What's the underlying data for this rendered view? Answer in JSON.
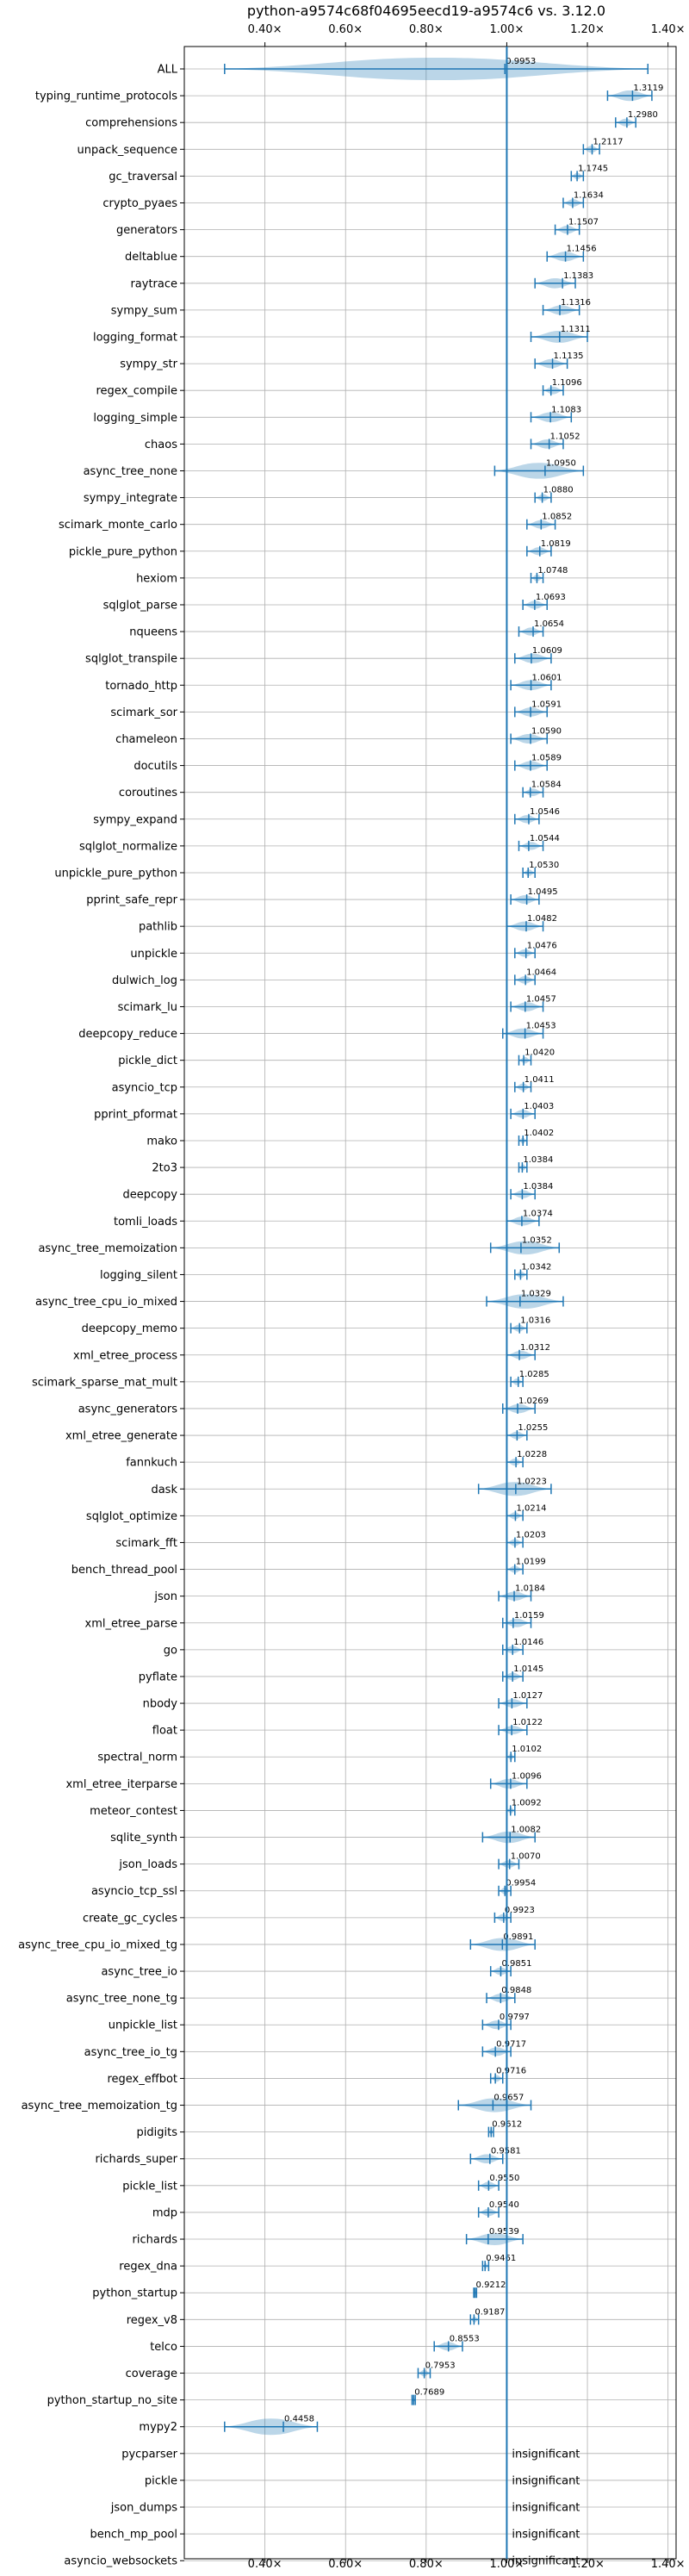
{
  "chart_data": {
    "type": "violin",
    "title": "python-a9574c68f04695eecd19-a9574c6 vs. 3.12.0",
    "x_ticks": [
      "0.40×",
      "0.60×",
      "0.80×",
      "1.00×",
      "1.20×",
      "1.40×"
    ],
    "x_tick_values": [
      0.4,
      0.6,
      0.8,
      1.0,
      1.2,
      1.4
    ],
    "xlim": [
      0.2,
      1.42
    ],
    "reference_line": 1.0,
    "grid": true,
    "color": "#1f77b4",
    "rows": [
      {
        "name": "ALL",
        "value": 0.9953,
        "label": "0.9953",
        "min": 0.3,
        "max": 1.35
      },
      {
        "name": "typing_runtime_protocols",
        "value": 1.3119,
        "label": "1.3119",
        "min": 1.25,
        "max": 1.36
      },
      {
        "name": "comprehensions",
        "value": 1.298,
        "label": "1.2980",
        "min": 1.27,
        "max": 1.32
      },
      {
        "name": "unpack_sequence",
        "value": 1.2117,
        "label": "1.2117",
        "min": 1.19,
        "max": 1.23
      },
      {
        "name": "gc_traversal",
        "value": 1.1745,
        "label": "1.1745",
        "min": 1.16,
        "max": 1.19
      },
      {
        "name": "crypto_pyaes",
        "value": 1.1634,
        "label": "1.1634",
        "min": 1.14,
        "max": 1.19
      },
      {
        "name": "generators",
        "value": 1.1507,
        "label": "1.1507",
        "min": 1.12,
        "max": 1.18
      },
      {
        "name": "deltablue",
        "value": 1.1456,
        "label": "1.1456",
        "min": 1.1,
        "max": 1.19
      },
      {
        "name": "raytrace",
        "value": 1.1383,
        "label": "1.1383",
        "min": 1.07,
        "max": 1.17
      },
      {
        "name": "sympy_sum",
        "value": 1.1316,
        "label": "1.1316",
        "min": 1.09,
        "max": 1.18
      },
      {
        "name": "logging_format",
        "value": 1.1311,
        "label": "1.1311",
        "min": 1.06,
        "max": 1.2
      },
      {
        "name": "sympy_str",
        "value": 1.1135,
        "label": "1.1135",
        "min": 1.07,
        "max": 1.15
      },
      {
        "name": "regex_compile",
        "value": 1.1096,
        "label": "1.1096",
        "min": 1.09,
        "max": 1.14
      },
      {
        "name": "logging_simple",
        "value": 1.1083,
        "label": "1.1083",
        "min": 1.06,
        "max": 1.16
      },
      {
        "name": "chaos",
        "value": 1.1052,
        "label": "1.1052",
        "min": 1.06,
        "max": 1.14
      },
      {
        "name": "async_tree_none",
        "value": 1.095,
        "label": "1.0950",
        "min": 0.97,
        "max": 1.19
      },
      {
        "name": "sympy_integrate",
        "value": 1.088,
        "label": "1.0880",
        "min": 1.07,
        "max": 1.11
      },
      {
        "name": "scimark_monte_carlo",
        "value": 1.0852,
        "label": "1.0852",
        "min": 1.05,
        "max": 1.12
      },
      {
        "name": "pickle_pure_python",
        "value": 1.0819,
        "label": "1.0819",
        "min": 1.05,
        "max": 1.11
      },
      {
        "name": "hexiom",
        "value": 1.0748,
        "label": "1.0748",
        "min": 1.06,
        "max": 1.09
      },
      {
        "name": "sqlglot_parse",
        "value": 1.0693,
        "label": "1.0693",
        "min": 1.04,
        "max": 1.1
      },
      {
        "name": "nqueens",
        "value": 1.0654,
        "label": "1.0654",
        "min": 1.03,
        "max": 1.09
      },
      {
        "name": "sqlglot_transpile",
        "value": 1.0609,
        "label": "1.0609",
        "min": 1.02,
        "max": 1.11
      },
      {
        "name": "tornado_http",
        "value": 1.0601,
        "label": "1.0601",
        "min": 1.01,
        "max": 1.11
      },
      {
        "name": "scimark_sor",
        "value": 1.0591,
        "label": "1.0591",
        "min": 1.02,
        "max": 1.1
      },
      {
        "name": "chameleon",
        "value": 1.059,
        "label": "1.0590",
        "min": 1.01,
        "max": 1.1
      },
      {
        "name": "docutils",
        "value": 1.0589,
        "label": "1.0589",
        "min": 1.02,
        "max": 1.1
      },
      {
        "name": "coroutines",
        "value": 1.0584,
        "label": "1.0584",
        "min": 1.04,
        "max": 1.09
      },
      {
        "name": "sympy_expand",
        "value": 1.0546,
        "label": "1.0546",
        "min": 1.02,
        "max": 1.08
      },
      {
        "name": "sqlglot_normalize",
        "value": 1.0544,
        "label": "1.0544",
        "min": 1.03,
        "max": 1.09
      },
      {
        "name": "unpickle_pure_python",
        "value": 1.053,
        "label": "1.0530",
        "min": 1.04,
        "max": 1.07
      },
      {
        "name": "pprint_safe_repr",
        "value": 1.0495,
        "label": "1.0495",
        "min": 1.01,
        "max": 1.08
      },
      {
        "name": "pathlib",
        "value": 1.0482,
        "label": "1.0482",
        "min": 1.0,
        "max": 1.09
      },
      {
        "name": "unpickle",
        "value": 1.0476,
        "label": "1.0476",
        "min": 1.02,
        "max": 1.07
      },
      {
        "name": "dulwich_log",
        "value": 1.0464,
        "label": "1.0464",
        "min": 1.02,
        "max": 1.07
      },
      {
        "name": "scimark_lu",
        "value": 1.0457,
        "label": "1.0457",
        "min": 1.01,
        "max": 1.09
      },
      {
        "name": "deepcopy_reduce",
        "value": 1.0453,
        "label": "1.0453",
        "min": 0.99,
        "max": 1.09
      },
      {
        "name": "pickle_dict",
        "value": 1.042,
        "label": "1.0420",
        "min": 1.03,
        "max": 1.06
      },
      {
        "name": "asyncio_tcp",
        "value": 1.0411,
        "label": "1.0411",
        "min": 1.02,
        "max": 1.06
      },
      {
        "name": "pprint_pformat",
        "value": 1.0403,
        "label": "1.0403",
        "min": 1.01,
        "max": 1.07
      },
      {
        "name": "mako",
        "value": 1.0402,
        "label": "1.0402",
        "min": 1.03,
        "max": 1.05
      },
      {
        "name": "2to3",
        "value": 1.0384,
        "label": "1.0384",
        "min": 1.03,
        "max": 1.05
      },
      {
        "name": "deepcopy",
        "value": 1.0384,
        "label": "1.0384",
        "min": 1.01,
        "max": 1.07
      },
      {
        "name": "tomli_loads",
        "value": 1.0374,
        "label": "1.0374",
        "min": 1.0,
        "max": 1.08
      },
      {
        "name": "async_tree_memoization",
        "value": 1.0352,
        "label": "1.0352",
        "min": 0.96,
        "max": 1.13
      },
      {
        "name": "logging_silent",
        "value": 1.0342,
        "label": "1.0342",
        "min": 1.02,
        "max": 1.05
      },
      {
        "name": "async_tree_cpu_io_mixed",
        "value": 1.0329,
        "label": "1.0329",
        "min": 0.95,
        "max": 1.14
      },
      {
        "name": "deepcopy_memo",
        "value": 1.0316,
        "label": "1.0316",
        "min": 1.01,
        "max": 1.05
      },
      {
        "name": "xml_etree_process",
        "value": 1.0312,
        "label": "1.0312",
        "min": 1.0,
        "max": 1.07
      },
      {
        "name": "scimark_sparse_mat_mult",
        "value": 1.0285,
        "label": "1.0285",
        "min": 1.01,
        "max": 1.04
      },
      {
        "name": "async_generators",
        "value": 1.0269,
        "label": "1.0269",
        "min": 0.99,
        "max": 1.07
      },
      {
        "name": "xml_etree_generate",
        "value": 1.0255,
        "label": "1.0255",
        "min": 1.0,
        "max": 1.05
      },
      {
        "name": "fannkuch",
        "value": 1.0228,
        "label": "1.0228",
        "min": 1.0,
        "max": 1.04
      },
      {
        "name": "dask",
        "value": 1.0223,
        "label": "1.0223",
        "min": 0.93,
        "max": 1.11
      },
      {
        "name": "sqlglot_optimize",
        "value": 1.0214,
        "label": "1.0214",
        "min": 1.0,
        "max": 1.04
      },
      {
        "name": "scimark_fft",
        "value": 1.0203,
        "label": "1.0203",
        "min": 1.0,
        "max": 1.04
      },
      {
        "name": "bench_thread_pool",
        "value": 1.0199,
        "label": "1.0199",
        "min": 1.0,
        "max": 1.04
      },
      {
        "name": "json",
        "value": 1.0184,
        "label": "1.0184",
        "min": 0.98,
        "max": 1.06
      },
      {
        "name": "xml_etree_parse",
        "value": 1.0159,
        "label": "1.0159",
        "min": 0.99,
        "max": 1.06
      },
      {
        "name": "go",
        "value": 1.0146,
        "label": "1.0146",
        "min": 0.99,
        "max": 1.04
      },
      {
        "name": "pyflate",
        "value": 1.0145,
        "label": "1.0145",
        "min": 0.99,
        "max": 1.04
      },
      {
        "name": "nbody",
        "value": 1.0127,
        "label": "1.0127",
        "min": 0.98,
        "max": 1.05
      },
      {
        "name": "float",
        "value": 1.0122,
        "label": "1.0122",
        "min": 0.98,
        "max": 1.05
      },
      {
        "name": "spectral_norm",
        "value": 1.0102,
        "label": "1.0102",
        "min": 1.0,
        "max": 1.02
      },
      {
        "name": "xml_etree_iterparse",
        "value": 1.0096,
        "label": "1.0096",
        "min": 0.96,
        "max": 1.05
      },
      {
        "name": "meteor_contest",
        "value": 1.0092,
        "label": "1.0092",
        "min": 1.0,
        "max": 1.02
      },
      {
        "name": "sqlite_synth",
        "value": 1.0082,
        "label": "1.0082",
        "min": 0.94,
        "max": 1.07
      },
      {
        "name": "json_loads",
        "value": 1.007,
        "label": "1.0070",
        "min": 0.98,
        "max": 1.03
      },
      {
        "name": "asyncio_tcp_ssl",
        "value": 0.9954,
        "label": "0.9954",
        "min": 0.98,
        "max": 1.01
      },
      {
        "name": "create_gc_cycles",
        "value": 0.9923,
        "label": "0.9923",
        "min": 0.97,
        "max": 1.01
      },
      {
        "name": "async_tree_cpu_io_mixed_tg",
        "value": 0.9891,
        "label": "0.9891",
        "min": 0.91,
        "max": 1.07
      },
      {
        "name": "async_tree_io",
        "value": 0.9851,
        "label": "0.9851",
        "min": 0.96,
        "max": 1.01
      },
      {
        "name": "async_tree_none_tg",
        "value": 0.9848,
        "label": "0.9848",
        "min": 0.95,
        "max": 1.02
      },
      {
        "name": "unpickle_list",
        "value": 0.9797,
        "label": "0.9797",
        "min": 0.94,
        "max": 1.01
      },
      {
        "name": "async_tree_io_tg",
        "value": 0.9717,
        "label": "0.9717",
        "min": 0.94,
        "max": 1.01
      },
      {
        "name": "regex_effbot",
        "value": 0.9716,
        "label": "0.9716",
        "min": 0.96,
        "max": 0.99
      },
      {
        "name": "async_tree_memoization_tg",
        "value": 0.9657,
        "label": "0.9657",
        "min": 0.88,
        "max": 1.06
      },
      {
        "name": "pidigits",
        "value": 0.9612,
        "label": "0.9612",
        "min": 0.955,
        "max": 0.967
      },
      {
        "name": "richards_super",
        "value": 0.9581,
        "label": "0.9581",
        "min": 0.91,
        "max": 0.99
      },
      {
        "name": "pickle_list",
        "value": 0.955,
        "label": "0.9550",
        "min": 0.93,
        "max": 0.98
      },
      {
        "name": "mdp",
        "value": 0.954,
        "label": "0.9540",
        "min": 0.93,
        "max": 0.98
      },
      {
        "name": "richards",
        "value": 0.9539,
        "label": "0.9539",
        "min": 0.9,
        "max": 1.04
      },
      {
        "name": "regex_dna",
        "value": 0.9461,
        "label": "0.9461",
        "min": 0.94,
        "max": 0.955
      },
      {
        "name": "python_startup",
        "value": 0.9212,
        "label": "0.9212",
        "min": 0.918,
        "max": 0.925
      },
      {
        "name": "regex_v8",
        "value": 0.9187,
        "label": "0.9187",
        "min": 0.91,
        "max": 0.93
      },
      {
        "name": "telco",
        "value": 0.8553,
        "label": "0.8553",
        "min": 0.82,
        "max": 0.89
      },
      {
        "name": "coverage",
        "value": 0.7953,
        "label": "0.7953",
        "min": 0.78,
        "max": 0.81
      },
      {
        "name": "python_startup_no_site",
        "value": 0.7689,
        "label": "0.7689",
        "min": 0.765,
        "max": 0.773
      },
      {
        "name": "mypy2",
        "value": 0.4458,
        "label": "0.4458",
        "min": 0.3,
        "max": 0.53
      },
      {
        "name": "pycparser",
        "value": null,
        "label": "insignificant"
      },
      {
        "name": "pickle",
        "value": null,
        "label": "insignificant"
      },
      {
        "name": "json_dumps",
        "value": null,
        "label": "insignificant"
      },
      {
        "name": "bench_mp_pool",
        "value": null,
        "label": "insignificant"
      },
      {
        "name": "asyncio_websockets",
        "value": null,
        "label": "insignificant"
      }
    ]
  }
}
